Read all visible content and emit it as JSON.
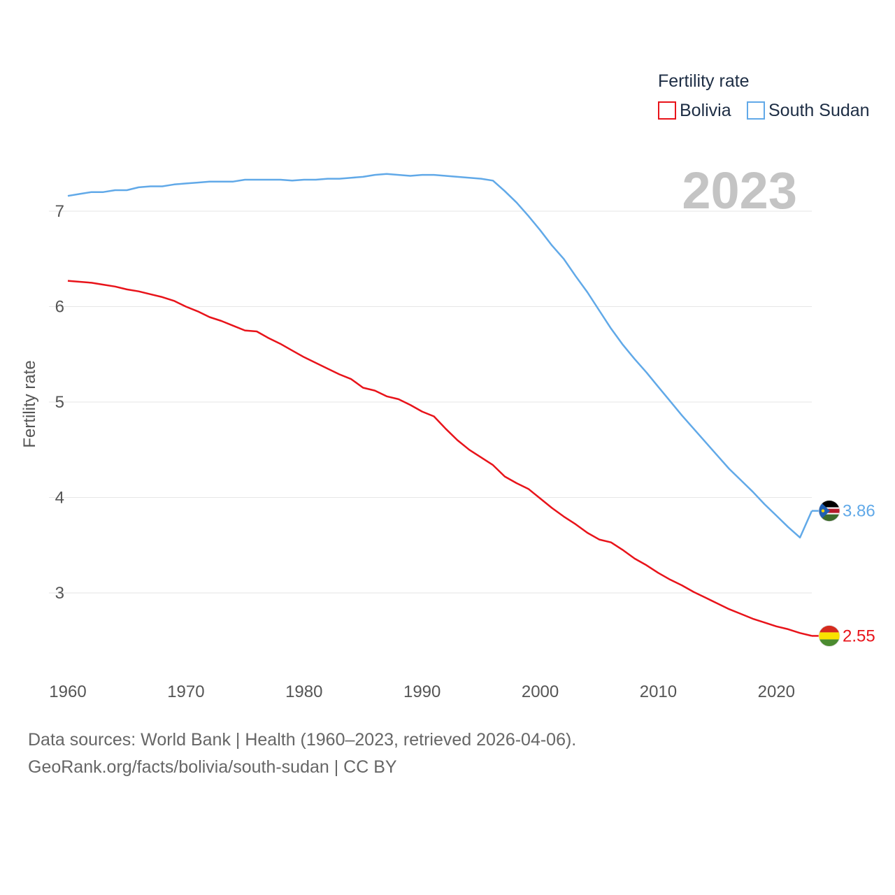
{
  "chart_data": {
    "type": "line",
    "legend_title": "Fertility rate",
    "ylabel": "Fertility rate",
    "xlabel": "",
    "current_year": "2023",
    "x_ticks": [
      "1960",
      "1970",
      "1980",
      "1990",
      "2000",
      "2010",
      "2020"
    ],
    "y_ticks": [
      "3",
      "4",
      "5",
      "6",
      "7"
    ],
    "xlim": [
      1960,
      2023
    ],
    "ylim": [
      2.2,
      7.5
    ],
    "grid": true,
    "legend_position": "top-right",
    "x": [
      1960,
      1961,
      1962,
      1963,
      1964,
      1965,
      1966,
      1967,
      1968,
      1969,
      1970,
      1971,
      1972,
      1973,
      1974,
      1975,
      1976,
      1977,
      1978,
      1979,
      1980,
      1981,
      1982,
      1983,
      1984,
      1985,
      1986,
      1987,
      1988,
      1989,
      1990,
      1991,
      1992,
      1993,
      1994,
      1995,
      1996,
      1997,
      1998,
      1999,
      2000,
      2001,
      2002,
      2003,
      2004,
      2005,
      2006,
      2007,
      2008,
      2009,
      2010,
      2011,
      2012,
      2013,
      2014,
      2015,
      2016,
      2017,
      2018,
      2019,
      2020,
      2021,
      2022,
      2023
    ],
    "series": [
      {
        "name": "Bolivia",
        "color": "#e8131a",
        "end_label": "2.55",
        "flag": "bolivia-flag",
        "values": [
          6.27,
          6.26,
          6.25,
          6.23,
          6.21,
          6.18,
          6.16,
          6.13,
          6.1,
          6.06,
          6.0,
          5.95,
          5.89,
          5.85,
          5.8,
          5.75,
          5.74,
          5.67,
          5.61,
          5.54,
          5.47,
          5.41,
          5.35,
          5.29,
          5.24,
          5.15,
          5.12,
          5.06,
          5.03,
          4.97,
          4.9,
          4.85,
          4.72,
          4.6,
          4.5,
          4.42,
          4.34,
          4.22,
          4.15,
          4.09,
          3.99,
          3.89,
          3.8,
          3.72,
          3.63,
          3.56,
          3.53,
          3.45,
          3.36,
          3.29,
          3.21,
          3.14,
          3.08,
          3.01,
          2.95,
          2.89,
          2.83,
          2.78,
          2.73,
          2.69,
          2.65,
          2.62,
          2.58,
          2.55
        ]
      },
      {
        "name": "South Sudan",
        "color": "#61a9e8",
        "end_label": "3.86",
        "flag": "south-sudan-flag",
        "values": [
          7.16,
          7.18,
          7.2,
          7.2,
          7.22,
          7.22,
          7.25,
          7.26,
          7.26,
          7.28,
          7.29,
          7.3,
          7.31,
          7.31,
          7.31,
          7.33,
          7.33,
          7.33,
          7.33,
          7.32,
          7.33,
          7.33,
          7.34,
          7.34,
          7.35,
          7.36,
          7.38,
          7.39,
          7.38,
          7.37,
          7.38,
          7.38,
          7.37,
          7.36,
          7.35,
          7.34,
          7.32,
          7.21,
          7.09,
          6.95,
          6.8,
          6.64,
          6.5,
          6.32,
          6.15,
          5.96,
          5.77,
          5.6,
          5.45,
          5.31,
          5.16,
          5.01,
          4.86,
          4.72,
          4.58,
          4.44,
          4.3,
          4.18,
          4.06,
          3.93,
          3.81,
          3.69,
          3.58,
          3.86
        ]
      }
    ]
  },
  "footer": {
    "sources": "Data sources: World Bank | Health (1960–2023, retrieved 2026-04-06).",
    "attribution": "GeoRank.org/facts/bolivia/south-sudan | CC BY"
  }
}
